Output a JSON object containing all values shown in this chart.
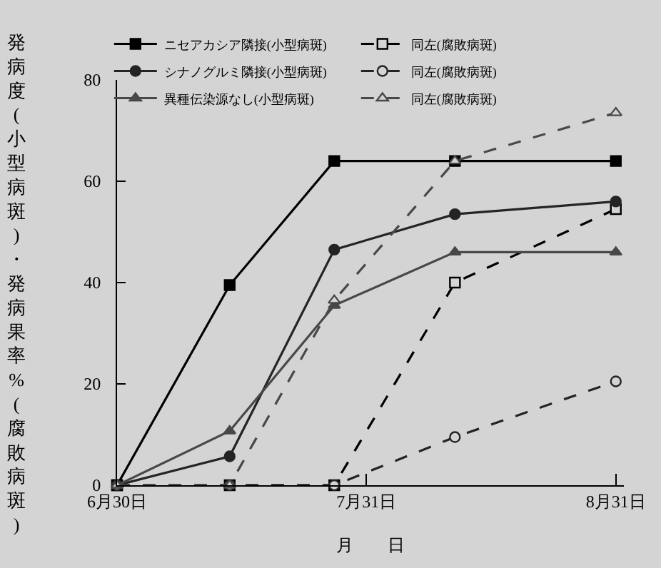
{
  "chart_data": {
    "type": "line",
    "ylabel": "発病度(小型病斑)・発病果率%(腐敗病斑)",
    "xlabel": "月　　日",
    "x": [
      "--06-30",
      "--07-14",
      "--07-27",
      "--08-11",
      "--08-31"
    ],
    "series": [
      {
        "name": "ニセアカシア隣接(小型病斑)",
        "color": "#000000",
        "marker": "square",
        "line_style": "solid",
        "values": [
          0,
          39.5,
          64,
          64,
          64
        ]
      },
      {
        "name": "同左(腐敗病斑)",
        "color": "#000000",
        "marker": "square",
        "line_style": "dashed",
        "values": [
          0,
          0,
          0,
          40,
          54.5
        ]
      },
      {
        "name": "シナノグルミ隣接(小型病斑)",
        "color": "#242424",
        "marker": "circle",
        "line_style": "solid",
        "values": [
          0,
          5.7,
          46.5,
          53.5,
          56
        ]
      },
      {
        "name": "同左(腐敗病斑)",
        "color": "#242424",
        "marker": "circle",
        "line_style": "dashed",
        "values": [
          0,
          0,
          0,
          9.5,
          20.5
        ]
      },
      {
        "name": "異種伝染源なし(小型病斑)",
        "color": "#484848",
        "marker": "triangle",
        "line_style": "solid",
        "values": [
          0,
          10.7,
          35.5,
          46,
          46
        ]
      },
      {
        "name": "同左(腐敗病斑)",
        "color": "#484848",
        "marker": "triangle",
        "line_style": "dashed",
        "values": [
          0,
          0,
          36.5,
          64,
          73.5
        ]
      }
    ],
    "xlim": [
      "--06-30",
      "--09-01"
    ],
    "xticks": [
      {
        "value": "--06-30",
        "label": "6月30日"
      },
      {
        "value": "--07-31",
        "label": "7月31日"
      },
      {
        "value": "--08-31",
        "label": "8月31日"
      }
    ],
    "ylim": [
      0,
      80
    ],
    "yticks": [
      0,
      20,
      40,
      60,
      80
    ],
    "grid": false,
    "legend": "top left"
  }
}
